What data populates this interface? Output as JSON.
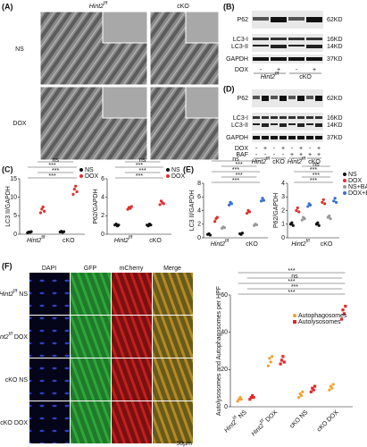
{
  "panels": [
    "(A)",
    "(B)",
    "(C)",
    "(D)",
    "(E)",
    "(F)"
  ],
  "panel_a": {
    "columns": [
      {
        "text": "Hint2",
        "sup": "f/f"
      },
      {
        "text": "cKO"
      }
    ],
    "rows": [
      "NS",
      "DOX"
    ]
  },
  "panel_b": {
    "proteins": [
      "P62",
      "LC3-I",
      "LC3-II",
      "GAPDH"
    ],
    "sizes": [
      "62KD",
      "16KD",
      "14KD",
      "37KD"
    ],
    "dox_label": "DOX",
    "dox": [
      "-",
      "+",
      "-",
      "+"
    ],
    "groups": [
      {
        "text": "Hint2",
        "sup": "f/f"
      },
      {
        "text": "cKO"
      }
    ]
  },
  "panel_d": {
    "proteins": [
      "P62",
      "LC3-I",
      "LC3-II",
      "GAPDH"
    ],
    "sizes": [
      "62KD",
      "16KD",
      "14KD",
      "37KD"
    ],
    "dox_label": "DOX",
    "baf_label": "BAF",
    "dox": [
      "-",
      "+",
      "-",
      "+",
      "-",
      "+",
      "-",
      "+"
    ],
    "baf": [
      "-",
      "-",
      "-",
      "-",
      "+",
      "+",
      "+",
      "+"
    ],
    "groups": [
      {
        "text": "Hint2",
        "sup": "f/f"
      },
      {
        "text": "cKO"
      },
      {
        "text": "Hint2",
        "sup": "f/f"
      },
      {
        "text": "cKO"
      }
    ]
  },
  "panel_f": {
    "channels": [
      "DAPI",
      "GFP",
      "mCherry",
      "Merge"
    ],
    "rows": [
      {
        "text": "Hint2",
        "sup": "f/f",
        "suffix": " NS"
      },
      {
        "text": "Hint2",
        "sup": "f/f",
        "suffix": " DOX"
      },
      {
        "text": "cKO NS"
      },
      {
        "text": "cKO DOX"
      }
    ],
    "scale": "50µm"
  },
  "chart_data": [
    {
      "type": "strip",
      "y_label": "LC3 II/GAPDH",
      "ylim": [
        0,
        15
      ],
      "yticks": [
        0,
        5,
        10,
        15
      ],
      "legend": true,
      "categories": [
        {
          "text": "Hint2",
          "sup": "f/f"
        },
        {
          "text": "cKO"
        }
      ],
      "series": [
        {
          "name": "NS",
          "color": "#111111",
          "values": [
            [
              0.4,
              0.6,
              0.5,
              0.7
            ],
            [
              0.6,
              0.8,
              0.5,
              0.7
            ]
          ]
        },
        {
          "name": "DOX",
          "color": "#e0302e",
          "values": [
            [
              5.8,
              6.8,
              7.4,
              6.2
            ],
            [
              10.8,
              12.2,
              13,
              11.5
            ]
          ]
        }
      ],
      "annotations": [
        "***",
        "***",
        "***",
        "ns"
      ]
    },
    {
      "type": "strip",
      "y_label": "P62/GAPDH",
      "ylim": [
        0,
        6
      ],
      "yticks": [
        0,
        2,
        4,
        6
      ],
      "legend": true,
      "categories": [
        {
          "text": "Hint2",
          "sup": "f/f"
        },
        {
          "text": "cKO"
        }
      ],
      "series": [
        {
          "name": "NS",
          "color": "#111111",
          "values": [
            [
              1,
              1.1,
              0.9,
              1
            ],
            [
              1,
              0.9,
              1.1,
              1
            ]
          ]
        },
        {
          "name": "DOX",
          "color": "#e0302e",
          "values": [
            [
              2.7,
              2.9,
              2.8,
              3
            ],
            [
              3.2,
              3.6,
              3.4,
              3.3
            ]
          ]
        }
      ],
      "annotations": [
        "***",
        "***",
        "***",
        "ns"
      ]
    },
    {
      "type": "strip",
      "y_label": "LC3 II/GAPDH",
      "ylim": [
        0,
        8
      ],
      "yticks": [
        0,
        2,
        4,
        6,
        8
      ],
      "legend": false,
      "categories": [
        {
          "text": "Hint2",
          "sup": "f/f"
        },
        {
          "text": "cKO"
        }
      ],
      "series": [
        {
          "name": "NS",
          "color": "#111111",
          "values": [
            [
              0.5,
              0.6,
              0.4
            ],
            [
              0.6,
              0.5,
              0.7
            ]
          ]
        },
        {
          "name": "DOX",
          "color": "#e0302e",
          "values": [
            [
              2.4,
              2.8,
              3
            ],
            [
              3.6,
              4,
              3.8
            ]
          ]
        },
        {
          "name": "NS+BAF",
          "color": "#999999",
          "values": [
            [
              1.4,
              1.6,
              1.5
            ],
            [
              1.8,
              2,
              1.9
            ]
          ]
        },
        {
          "name": "DOX+BAF",
          "color": "#3a6fd0",
          "values": [
            [
              4.8,
              5.2,
              5
            ],
            [
              5.4,
              5.8,
              5.5
            ]
          ]
        }
      ],
      "annotations": [
        "***",
        "***",
        "***",
        "***",
        "ns"
      ]
    },
    {
      "type": "strip",
      "y_label": "P62/GAPDH",
      "ylim": [
        0,
        4
      ],
      "yticks": [
        0,
        1,
        2,
        3,
        4
      ],
      "legend": true,
      "categories": [
        {
          "text": "Hint2",
          "sup": "f/f"
        },
        {
          "text": "cKO"
        }
      ],
      "series": [
        {
          "name": "NS",
          "color": "#111111",
          "values": [
            [
              1,
              1.1,
              0.9
            ],
            [
              1,
              1.1,
              0.9
            ]
          ]
        },
        {
          "name": "DOX",
          "color": "#e0302e",
          "values": [
            [
              2,
              2.2,
              1.9
            ],
            [
              2.6,
              2.8,
              2.5
            ]
          ]
        },
        {
          "name": "NS+BAF",
          "color": "#999999",
          "values": [
            [
              1.3,
              1.5,
              1.4
            ],
            [
              1.5,
              1.6,
              1.4
            ]
          ]
        },
        {
          "name": "DOX+BAF",
          "color": "#3a6fd0",
          "values": [
            [
              2.3,
              2.5,
              2.4
            ],
            [
              2.7,
              2.9,
              2.6
            ]
          ]
        }
      ],
      "annotations": [
        "***",
        "***",
        "***",
        "ns"
      ]
    },
    {
      "type": "strip",
      "y_label": "Autolysosomes and Autophagosomes per HPF",
      "ylim": [
        0,
        60
      ],
      "yticks": [
        0,
        20,
        40,
        60
      ],
      "legend": true,
      "categories": [
        {
          "text": "Hint2",
          "sup": "f/f",
          "suffix": " NS"
        },
        {
          "text": "Hint2",
          "sup": "f/f",
          "suffix": " DOX"
        },
        {
          "text": "cKO NS"
        },
        {
          "text": "cKO DOX"
        }
      ],
      "series": [
        {
          "name": "Autophagosomes",
          "color": "#f0a030",
          "values": [
            [
              3,
              4,
              5,
              4
            ],
            [
              22,
              26,
              24,
              27
            ],
            [
              5,
              7,
              6,
              8
            ],
            [
              9,
              11,
              10,
              12
            ]
          ]
        },
        {
          "name": "Autolysosomes",
          "color": "#e02828",
          "values": [
            [
              4,
              5,
              6,
              5
            ],
            [
              23,
              25,
              27,
              24
            ],
            [
              8,
              10,
              9,
              11
            ],
            [
              47,
              52,
              50,
              54
            ]
          ]
        }
      ],
      "annotations": [
        "***",
        "***",
        "***",
        "ns",
        "***"
      ]
    }
  ]
}
